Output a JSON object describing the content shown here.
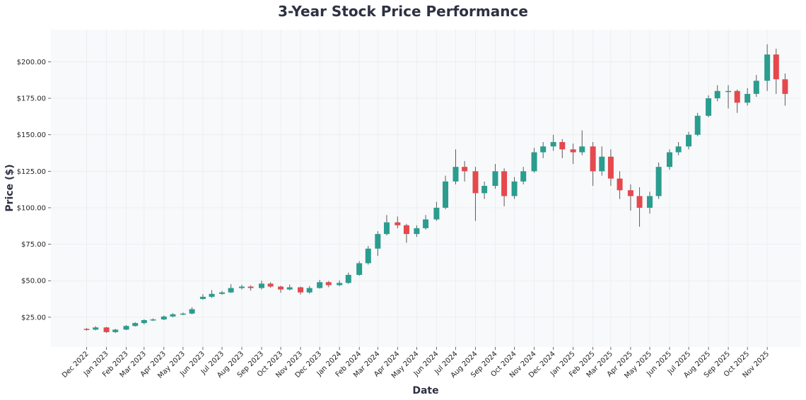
{
  "chart_data": {
    "type": "candlestick",
    "title": "3-Year Stock Price Performance",
    "xlabel": "Date",
    "ylabel": "Price ($)",
    "xlim": [
      "2022-10-06",
      "2025-12-24"
    ],
    "ylim": [
      4.6,
      222
    ],
    "grid": true,
    "colors": {
      "up": "#2a9d8f",
      "down": "#e5484d",
      "wick": "#5a5a5a",
      "plot_bg": "#f8f9fa",
      "grid": "#e9ecef",
      "title": "#2d3142"
    },
    "y_ticks": [
      25,
      50,
      75,
      100,
      125,
      150,
      175,
      200
    ],
    "y_tick_labels": [
      "$25.00",
      "$50.00",
      "$75.00",
      "$100.00",
      "$125.00",
      "$150.00",
      "$175.00",
      "$200.00"
    ],
    "x_ticks": [
      "2022-12-01",
      "2023-01-01",
      "2023-02-01",
      "2023-03-01",
      "2023-04-01",
      "2023-05-01",
      "2023-06-01",
      "2023-07-01",
      "2023-08-01",
      "2023-09-01",
      "2023-10-01",
      "2023-11-01",
      "2023-12-01",
      "2024-01-01",
      "2024-02-01",
      "2024-03-01",
      "2024-04-01",
      "2024-05-01",
      "2024-06-01",
      "2024-07-01",
      "2024-08-01",
      "2024-09-01",
      "2024-10-01",
      "2024-11-01",
      "2024-12-01",
      "2025-01-01",
      "2025-02-01",
      "2025-03-01",
      "2025-04-01",
      "2025-05-01",
      "2025-06-01",
      "2025-07-01",
      "2025-08-01",
      "2025-09-01",
      "2025-10-01",
      "2025-11-01"
    ],
    "x_tick_labels": [
      "Dec 2022",
      "Jan 2023",
      "Feb 2023",
      "Mar 2023",
      "Apr 2023",
      "May 2023",
      "Jun 2023",
      "Jul 2023",
      "Aug 2023",
      "Sep 2023",
      "Oct 2023",
      "Nov 2023",
      "Dec 2023",
      "Jan 2024",
      "Feb 2024",
      "Mar 2024",
      "Apr 2024",
      "May 2024",
      "Jun 2024",
      "Jul 2024",
      "Aug 2024",
      "Sep 2024",
      "Oct 2024",
      "Nov 2024",
      "Dec 2024",
      "Jan 2025",
      "Feb 2025",
      "Mar 2025",
      "Apr 2025",
      "May 2025",
      "Jun 2025",
      "Jul 2025",
      "Aug 2025",
      "Sep 2025",
      "Oct 2025",
      "Nov 2025"
    ],
    "ohlc_columns": [
      "date",
      "open",
      "high",
      "low",
      "close"
    ],
    "ohlc": [
      [
        "2022-12-01",
        17.0,
        17.6,
        15.8,
        16.5
      ],
      [
        "2022-12-15",
        16.5,
        18.8,
        16.0,
        18.0
      ],
      [
        "2023-01-01",
        18.0,
        18.4,
        14.2,
        14.8
      ],
      [
        "2023-01-15",
        14.8,
        17.0,
        14.2,
        16.5
      ],
      [
        "2023-02-01",
        16.5,
        19.6,
        16.2,
        19.0
      ],
      [
        "2023-02-15",
        19.0,
        21.6,
        18.6,
        21.0
      ],
      [
        "2023-03-01",
        21.0,
        23.6,
        20.2,
        23.0
      ],
      [
        "2023-03-15",
        23.0,
        24.2,
        22.4,
        23.5
      ],
      [
        "2023-04-01",
        23.5,
        26.2,
        23.0,
        25.5
      ],
      [
        "2023-04-15",
        25.5,
        27.8,
        25.0,
        27.0
      ],
      [
        "2023-05-01",
        27.0,
        28.2,
        26.4,
        27.5
      ],
      [
        "2023-05-15",
        27.5,
        31.8,
        27.0,
        30.5
      ],
      [
        "2023-06-01",
        37.5,
        40.8,
        37.0,
        39.0
      ],
      [
        "2023-06-15",
        39.0,
        43.6,
        38.2,
        41.0
      ],
      [
        "2023-07-01",
        41.0,
        43.0,
        40.4,
        42.0
      ],
      [
        "2023-07-15",
        42.0,
        47.6,
        41.6,
        45.0
      ],
      [
        "2023-08-01",
        45.0,
        47.2,
        44.0,
        46.0
      ],
      [
        "2023-08-15",
        46.0,
        46.8,
        43.2,
        45.0
      ],
      [
        "2023-09-01",
        45.0,
        50.0,
        44.0,
        48.0
      ],
      [
        "2023-09-15",
        48.0,
        49.0,
        45.2,
        46.0
      ],
      [
        "2023-10-01",
        46.0,
        46.6,
        41.8,
        44.0
      ],
      [
        "2023-10-15",
        44.0,
        47.4,
        43.4,
        45.5
      ],
      [
        "2023-11-01",
        45.5,
        46.0,
        40.6,
        42.0
      ],
      [
        "2023-11-15",
        42.0,
        46.4,
        41.2,
        45.0
      ],
      [
        "2023-12-01",
        45.0,
        50.6,
        44.6,
        49.0
      ],
      [
        "2023-12-15",
        49.0,
        49.8,
        45.6,
        47.0
      ],
      [
        "2024-01-01",
        47.0,
        50.2,
        46.2,
        48.5
      ],
      [
        "2024-01-15",
        48.5,
        55.6,
        47.8,
        54.0
      ],
      [
        "2024-02-01",
        54.0,
        63.4,
        53.4,
        62.0
      ],
      [
        "2024-02-15",
        62.0,
        73.8,
        61.0,
        72.0
      ],
      [
        "2024-03-01",
        72.0,
        84.0,
        67.0,
        82.0
      ],
      [
        "2024-03-15",
        82.0,
        95.0,
        81.0,
        90.0
      ],
      [
        "2024-04-01",
        90.0,
        94.0,
        86.0,
        88.0
      ],
      [
        "2024-04-15",
        88.0,
        89.0,
        76.0,
        82.0
      ],
      [
        "2024-05-01",
        82.0,
        88.0,
        80.0,
        86.0
      ],
      [
        "2024-05-15",
        86.0,
        95.0,
        85.0,
        92.0
      ],
      [
        "2024-06-01",
        92.0,
        104.0,
        91.0,
        100.0
      ],
      [
        "2024-06-15",
        100.0,
        122.0,
        99.0,
        118.0
      ],
      [
        "2024-07-01",
        118.0,
        140.0,
        116.0,
        128.0
      ],
      [
        "2024-07-15",
        128.0,
        132.0,
        118.0,
        125.0
      ],
      [
        "2024-08-01",
        125.0,
        128.0,
        91.0,
        110.0
      ],
      [
        "2024-08-15",
        110.0,
        118.0,
        106.0,
        115.0
      ],
      [
        "2024-09-01",
        115.0,
        130.0,
        113.0,
        125.0
      ],
      [
        "2024-09-15",
        125.0,
        127.0,
        101.0,
        108.0
      ],
      [
        "2024-10-01",
        108.0,
        121.0,
        106.0,
        118.0
      ],
      [
        "2024-10-15",
        118.0,
        128.0,
        116.0,
        125.0
      ],
      [
        "2024-11-01",
        125.0,
        141.0,
        124.0,
        138.0
      ],
      [
        "2024-11-15",
        138.0,
        145.0,
        134.0,
        142.0
      ],
      [
        "2024-12-01",
        142.0,
        150.0,
        139.0,
        145.0
      ],
      [
        "2024-12-15",
        145.0,
        147.0,
        134.0,
        140.0
      ],
      [
        "2025-01-01",
        140.0,
        144.0,
        130.0,
        138.0
      ],
      [
        "2025-01-15",
        138.0,
        153.0,
        136.0,
        142.0
      ],
      [
        "2025-02-01",
        142.0,
        145.0,
        115.0,
        125.0
      ],
      [
        "2025-02-15",
        125.0,
        142.0,
        122.0,
        135.0
      ],
      [
        "2025-03-01",
        135.0,
        140.0,
        115.0,
        120.0
      ],
      [
        "2025-03-15",
        120.0,
        125.0,
        106.0,
        112.0
      ],
      [
        "2025-04-01",
        112.0,
        116.0,
        98.0,
        108.0
      ],
      [
        "2025-04-15",
        108.0,
        114.0,
        87.0,
        100.0
      ],
      [
        "2025-05-01",
        100.0,
        111.0,
        96.0,
        108.0
      ],
      [
        "2025-05-15",
        108.0,
        131.0,
        106.0,
        128.0
      ],
      [
        "2025-06-01",
        128.0,
        140.0,
        126.0,
        138.0
      ],
      [
        "2025-06-15",
        138.0,
        145.0,
        136.0,
        142.0
      ],
      [
        "2025-07-01",
        142.0,
        152.0,
        140.0,
        150.0
      ],
      [
        "2025-07-15",
        150.0,
        165.0,
        149.0,
        163.0
      ],
      [
        "2025-08-01",
        163.0,
        177.0,
        162.0,
        175.0
      ],
      [
        "2025-08-15",
        175.0,
        184.0,
        173.0,
        180.0
      ],
      [
        "2025-09-01",
        180.0,
        184.0,
        168.0,
        180.0
      ],
      [
        "2025-09-15",
        180.0,
        181.0,
        165.0,
        172.0
      ],
      [
        "2025-10-01",
        172.0,
        182.0,
        170.0,
        178.0
      ],
      [
        "2025-10-15",
        178.0,
        191.0,
        176.0,
        187.0
      ],
      [
        "2025-11-01",
        187.0,
        212.0,
        180.0,
        205.0
      ],
      [
        "2025-11-15",
        205.0,
        209.0,
        178.0,
        188.0
      ],
      [
        "2025-11-29",
        188.0,
        192.0,
        170.0,
        178.0
      ]
    ]
  }
}
